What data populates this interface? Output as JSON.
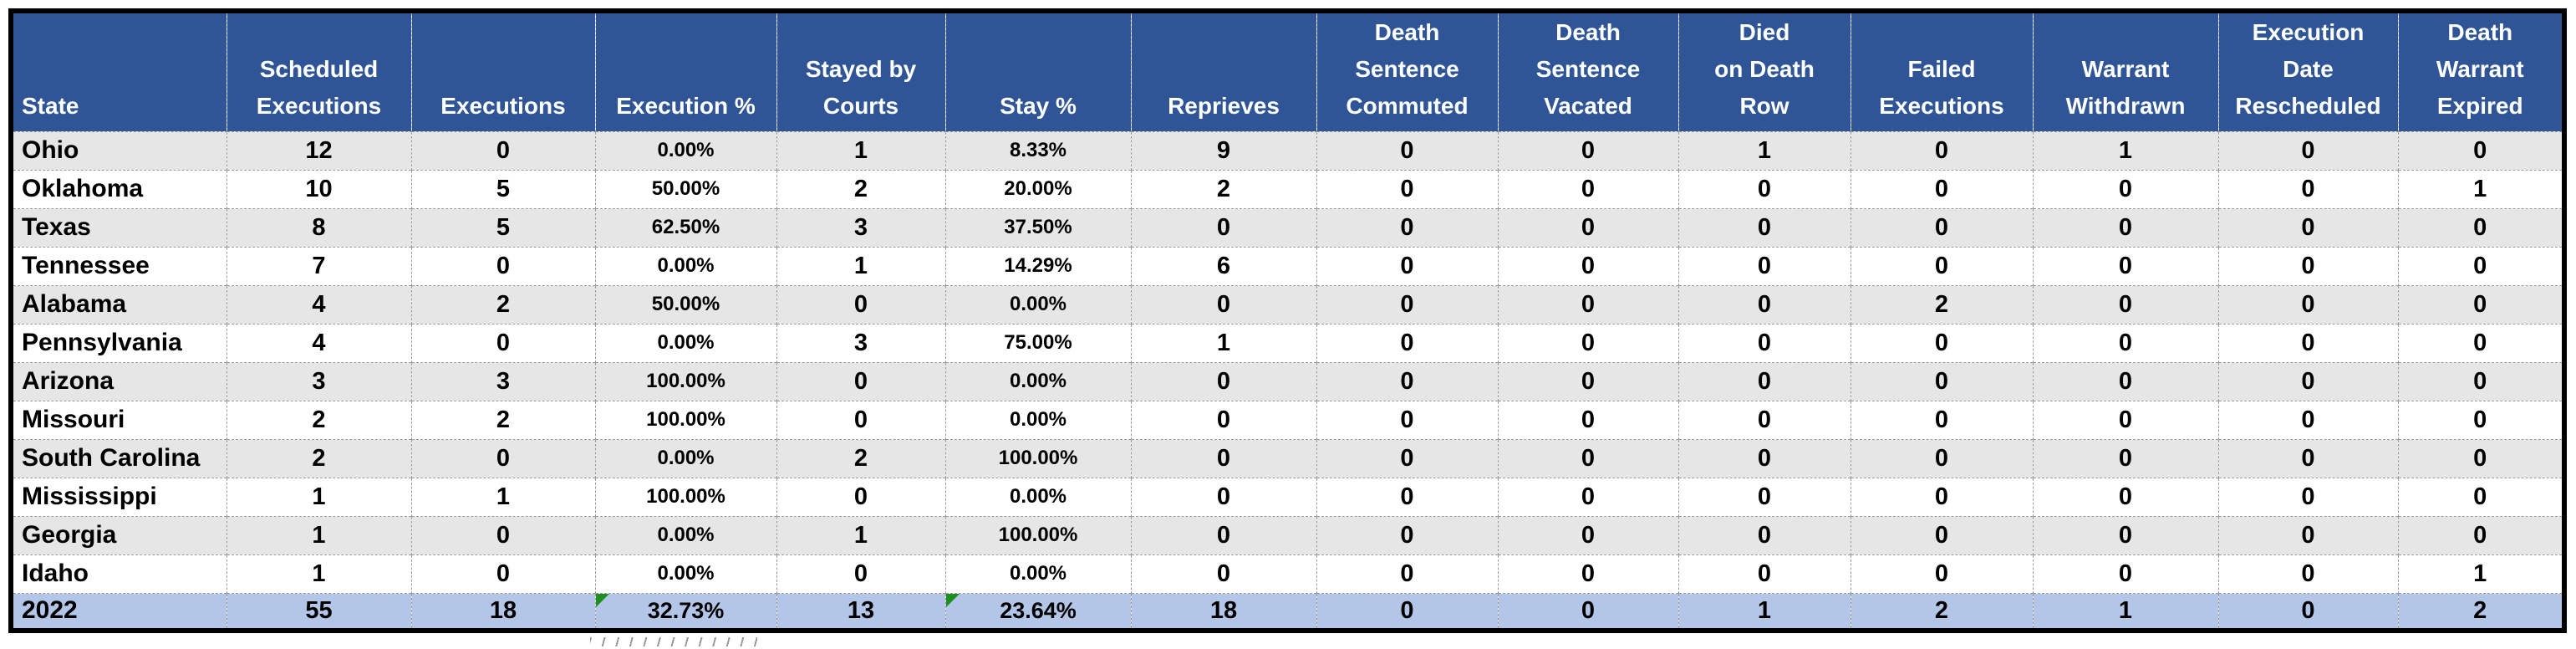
{
  "table": {
    "columns": [
      {
        "key": "state",
        "label": "State"
      },
      {
        "key": "scheduled-executions",
        "label": "Scheduled\nExecutions"
      },
      {
        "key": "executions",
        "label": "Executions"
      },
      {
        "key": "execution-pct",
        "label": "Execution %"
      },
      {
        "key": "stayed-by-courts",
        "label": "Stayed by\nCourts"
      },
      {
        "key": "stay-pct",
        "label": "Stay %"
      },
      {
        "key": "reprieves",
        "label": "Reprieves"
      },
      {
        "key": "death-sentence-commuted",
        "label": "Death\nSentence\nCommuted"
      },
      {
        "key": "death-sentence-vacated",
        "label": "Death\nSentence\nVacated"
      },
      {
        "key": "died-on-death-row",
        "label": "Died\non Death\nRow"
      },
      {
        "key": "failed-executions",
        "label": "Failed\nExecutions"
      },
      {
        "key": "warrant-withdrawn",
        "label": "Warrant\nWithdrawn"
      },
      {
        "key": "execution-date-rescheduled",
        "label": "Execution\nDate\nRescheduled"
      },
      {
        "key": "death-warrant-expired",
        "label": "Death\nWarrant\nExpired"
      }
    ],
    "rows": [
      [
        "Ohio",
        "12",
        "0",
        "0.00%",
        "1",
        "8.33%",
        "9",
        "0",
        "0",
        "1",
        "0",
        "1",
        "0",
        "0"
      ],
      [
        "Oklahoma",
        "10",
        "5",
        "50.00%",
        "2",
        "20.00%",
        "2",
        "0",
        "0",
        "0",
        "0",
        "0",
        "0",
        "1"
      ],
      [
        "Texas",
        "8",
        "5",
        "62.50%",
        "3",
        "37.50%",
        "0",
        "0",
        "0",
        "0",
        "0",
        "0",
        "0",
        "0"
      ],
      [
        "Tennessee",
        "7",
        "0",
        "0.00%",
        "1",
        "14.29%",
        "6",
        "0",
        "0",
        "0",
        "0",
        "0",
        "0",
        "0"
      ],
      [
        "Alabama",
        "4",
        "2",
        "50.00%",
        "0",
        "0.00%",
        "0",
        "0",
        "0",
        "0",
        "2",
        "0",
        "0",
        "0"
      ],
      [
        "Pennsylvania",
        "4",
        "0",
        "0.00%",
        "3",
        "75.00%",
        "1",
        "0",
        "0",
        "0",
        "0",
        "0",
        "0",
        "0"
      ],
      [
        "Arizona",
        "3",
        "3",
        "100.00%",
        "0",
        "0.00%",
        "0",
        "0",
        "0",
        "0",
        "0",
        "0",
        "0",
        "0"
      ],
      [
        "Missouri",
        "2",
        "2",
        "100.00%",
        "0",
        "0.00%",
        "0",
        "0",
        "0",
        "0",
        "0",
        "0",
        "0",
        "0"
      ],
      [
        "South Carolina",
        "2",
        "0",
        "0.00%",
        "2",
        "100.00%",
        "0",
        "0",
        "0",
        "0",
        "0",
        "0",
        "0",
        "0"
      ],
      [
        "Mississippi",
        "1",
        "1",
        "100.00%",
        "0",
        "0.00%",
        "0",
        "0",
        "0",
        "0",
        "0",
        "0",
        "0",
        "0"
      ],
      [
        "Georgia",
        "1",
        "0",
        "0.00%",
        "1",
        "100.00%",
        "0",
        "0",
        "0",
        "0",
        "0",
        "0",
        "0",
        "0"
      ],
      [
        "Idaho",
        "1",
        "0",
        "0.00%",
        "0",
        "0.00%",
        "0",
        "0",
        "0",
        "0",
        "0",
        "0",
        "0",
        "1"
      ]
    ],
    "total_row": {
      "cells": [
        "2022",
        "55",
        "18",
        "32.73%",
        "13",
        "23.64%",
        "18",
        "0",
        "0",
        "1",
        "2",
        "1",
        "0",
        "2"
      ],
      "error_indicator_columns": [
        3,
        5
      ]
    }
  },
  "icons": {
    "error_indicator": "green-corner-triangle"
  },
  "colors": {
    "header_bg": "#2F5597",
    "header_text": "#FFFFFF",
    "stripe_bg": "#E7E6E6",
    "row_bg": "#FFFFFF",
    "total_row_bg": "#B4C6E7",
    "outer_border": "#000000",
    "hairline": "#9A9A9A",
    "error_indicator": "#1E8E1E",
    "text": "#000000"
  }
}
